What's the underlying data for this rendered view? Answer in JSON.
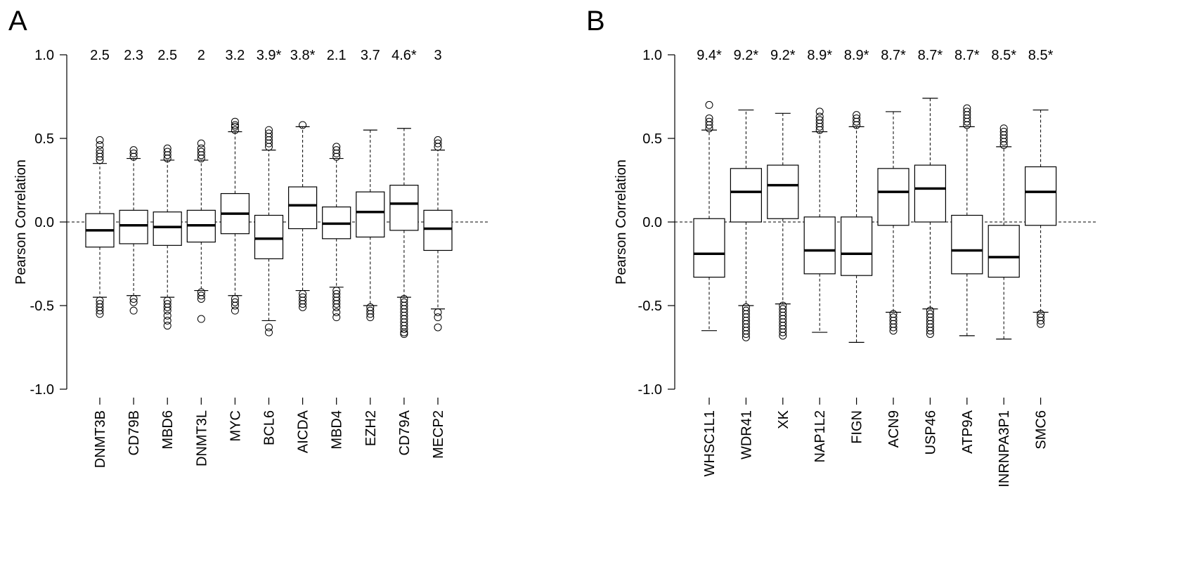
{
  "chart_data": [
    {
      "panel": "A",
      "type": "boxplot",
      "ylabel": "Pearson Correlation",
      "ylim": [
        -1.0,
        1.0
      ],
      "yticks": [
        "-1.0",
        "-0.5",
        "0.0",
        "0.5",
        "1.0"
      ],
      "yticks_values": [
        -1.0,
        -0.5,
        0.0,
        0.5,
        1.0
      ],
      "reference_line": 0.0,
      "categories": [
        "DNMT3B",
        "CD79B",
        "MBD6",
        "DNMT3L",
        "MYC",
        "BCL6",
        "AICDA",
        "MBD4",
        "EZH2",
        "CD79A",
        "MECP2"
      ],
      "scores": [
        "2.5",
        "2.3",
        "2.5",
        "2",
        "3.2",
        "3.9*",
        "3.8*",
        "2.1",
        "3.7",
        "4.6*",
        "3"
      ],
      "boxes": [
        {
          "whisker_low": -0.45,
          "q1": -0.15,
          "median": -0.05,
          "q3": 0.05,
          "whisker_high": 0.35,
          "outliers_low": [
            -0.47,
            -0.49,
            -0.51,
            -0.53,
            -0.55
          ],
          "outliers_high": [
            0.37,
            0.39,
            0.41,
            0.43,
            0.46,
            0.49
          ]
        },
        {
          "whisker_low": -0.44,
          "q1": -0.13,
          "median": -0.02,
          "q3": 0.07,
          "whisker_high": 0.38,
          "outliers_low": [
            -0.46,
            -0.48,
            -0.53
          ],
          "outliers_high": [
            0.39,
            0.41,
            0.43
          ]
        },
        {
          "whisker_low": -0.45,
          "q1": -0.14,
          "median": -0.03,
          "q3": 0.06,
          "whisker_high": 0.37,
          "outliers_low": [
            -0.47,
            -0.49,
            -0.51,
            -0.53,
            -0.56,
            -0.59,
            -0.62
          ],
          "outliers_high": [
            0.38,
            0.4,
            0.42,
            0.44
          ]
        },
        {
          "whisker_low": -0.41,
          "q1": -0.12,
          "median": -0.02,
          "q3": 0.07,
          "whisker_high": 0.37,
          "outliers_low": [
            -0.42,
            -0.44,
            -0.46,
            -0.58
          ],
          "outliers_high": [
            0.38,
            0.4,
            0.42,
            0.44,
            0.47
          ]
        },
        {
          "whisker_low": -0.44,
          "q1": -0.07,
          "median": 0.05,
          "q3": 0.17,
          "whisker_high": 0.54,
          "outliers_low": [
            -0.46,
            -0.48,
            -0.5,
            -0.53
          ],
          "outliers_high": [
            0.55,
            0.57,
            0.58,
            0.6
          ]
        },
        {
          "whisker_low": -0.59,
          "q1": -0.22,
          "median": -0.1,
          "q3": 0.04,
          "whisker_high": 0.43,
          "outliers_low": [
            -0.63,
            -0.66
          ],
          "outliers_high": [
            0.45,
            0.47,
            0.49,
            0.51,
            0.53,
            0.55
          ]
        },
        {
          "whisker_low": -0.41,
          "q1": -0.04,
          "median": 0.1,
          "q3": 0.21,
          "whisker_high": 0.57,
          "outliers_low": [
            -0.43,
            -0.45,
            -0.47,
            -0.49,
            -0.51
          ],
          "outliers_high": [
            0.58
          ]
        },
        {
          "whisker_low": -0.39,
          "q1": -0.1,
          "median": -0.01,
          "q3": 0.09,
          "whisker_high": 0.38,
          "outliers_low": [
            -0.41,
            -0.43,
            -0.45,
            -0.47,
            -0.49,
            -0.51,
            -0.54,
            -0.57
          ],
          "outliers_high": [
            0.39,
            0.41,
            0.43,
            0.45
          ]
        },
        {
          "whisker_low": -0.5,
          "q1": -0.09,
          "median": 0.06,
          "q3": 0.18,
          "whisker_high": 0.55,
          "outliers_low": [
            -0.51,
            -0.53,
            -0.55,
            -0.57
          ],
          "outliers_high": []
        },
        {
          "whisker_low": -0.45,
          "q1": -0.05,
          "median": 0.11,
          "q3": 0.22,
          "whisker_high": 0.56,
          "outliers_low": [
            -0.46,
            -0.48,
            -0.5,
            -0.52,
            -0.54,
            -0.56,
            -0.58,
            -0.6,
            -0.62,
            -0.64,
            -0.66,
            -0.67
          ],
          "outliers_high": []
        },
        {
          "whisker_low": -0.52,
          "q1": -0.17,
          "median": -0.04,
          "q3": 0.07,
          "whisker_high": 0.43,
          "outliers_low": [
            -0.54,
            -0.57,
            -0.63
          ],
          "outliers_high": [
            0.45,
            0.47,
            0.49
          ]
        }
      ]
    },
    {
      "panel": "B",
      "type": "boxplot",
      "ylabel": "Pearson Correlation",
      "ylim": [
        -1.0,
        1.0
      ],
      "yticks": [
        "-1.0",
        "-0.5",
        "0.0",
        "0.5",
        "1.0"
      ],
      "yticks_values": [
        -1.0,
        -0.5,
        0.0,
        0.5,
        1.0
      ],
      "reference_line": 0.0,
      "categories": [
        "WHSC1L1",
        "WDR41",
        "XK",
        "NAP1L2",
        "FIGN",
        "ACN9",
        "USP46",
        "ATP9A",
        "INRNPA3P1",
        "SMC6"
      ],
      "scores": [
        "9.4*",
        "9.2*",
        "9.2*",
        "8.9*",
        "8.9*",
        "8.7*",
        "8.7*",
        "8.7*",
        "8.5*",
        "8.5*"
      ],
      "boxes": [
        {
          "whisker_low": -0.65,
          "q1": -0.33,
          "median": -0.19,
          "q3": 0.02,
          "whisker_high": 0.55,
          "outliers_low": [],
          "outliers_high": [
            0.56,
            0.58,
            0.6,
            0.62,
            0.7
          ]
        },
        {
          "whisker_low": -0.5,
          "q1": 0.0,
          "median": 0.18,
          "q3": 0.32,
          "whisker_high": 0.67,
          "outliers_low": [
            -0.51,
            -0.53,
            -0.55,
            -0.57,
            -0.59,
            -0.61,
            -0.63,
            -0.65,
            -0.67,
            -0.69
          ],
          "outliers_high": []
        },
        {
          "whisker_low": -0.49,
          "q1": 0.02,
          "median": 0.22,
          "q3": 0.34,
          "whisker_high": 0.65,
          "outliers_low": [
            -0.5,
            -0.52,
            -0.54,
            -0.56,
            -0.58,
            -0.6,
            -0.62,
            -0.64,
            -0.66,
            -0.68
          ],
          "outliers_high": []
        },
        {
          "whisker_low": -0.66,
          "q1": -0.31,
          "median": -0.17,
          "q3": 0.03,
          "whisker_high": 0.54,
          "outliers_low": [],
          "outliers_high": [
            0.55,
            0.57,
            0.59,
            0.61,
            0.63,
            0.66
          ]
        },
        {
          "whisker_low": -0.72,
          "q1": -0.32,
          "median": -0.19,
          "q3": 0.03,
          "whisker_high": 0.57,
          "outliers_low": [],
          "outliers_high": [
            0.58,
            0.6,
            0.62,
            0.64
          ]
        },
        {
          "whisker_low": -0.54,
          "q1": -0.02,
          "median": 0.18,
          "q3": 0.32,
          "whisker_high": 0.66,
          "outliers_low": [
            -0.55,
            -0.57,
            -0.59,
            -0.61,
            -0.63,
            -0.65
          ],
          "outliers_high": []
        },
        {
          "whisker_low": -0.52,
          "q1": 0.0,
          "median": 0.2,
          "q3": 0.34,
          "whisker_high": 0.74,
          "outliers_low": [
            -0.53,
            -0.55,
            -0.57,
            -0.59,
            -0.61,
            -0.63,
            -0.65,
            -0.67
          ],
          "outliers_high": []
        },
        {
          "whisker_low": -0.68,
          "q1": -0.31,
          "median": -0.17,
          "q3": 0.04,
          "whisker_high": 0.57,
          "outliers_low": [],
          "outliers_high": [
            0.58,
            0.6,
            0.62,
            0.64,
            0.66,
            0.68
          ]
        },
        {
          "whisker_low": -0.7,
          "q1": -0.33,
          "median": -0.21,
          "q3": -0.02,
          "whisker_high": 0.45,
          "outliers_low": [],
          "outliers_high": [
            0.46,
            0.48,
            0.5,
            0.52,
            0.54,
            0.56
          ]
        },
        {
          "whisker_low": -0.54,
          "q1": -0.02,
          "median": 0.18,
          "q3": 0.33,
          "whisker_high": 0.67,
          "outliers_low": [
            -0.55,
            -0.57,
            -0.59,
            -0.61
          ],
          "outliers_high": []
        }
      ]
    }
  ]
}
